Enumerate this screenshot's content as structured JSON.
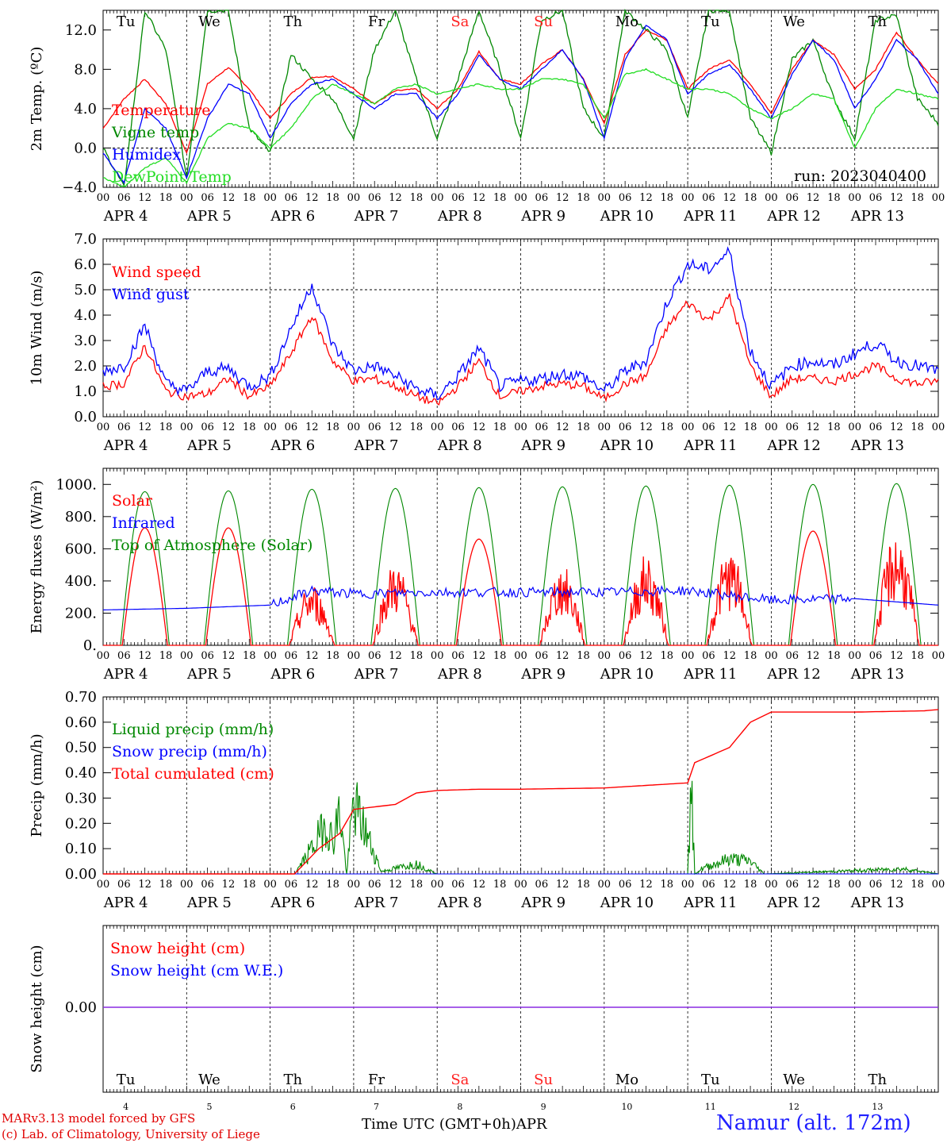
{
  "run_label": "run: 2023040400",
  "station": "Namur (alt. 172m)",
  "credit_line1": "MARv3.13 model forced by GFS",
  "credit_line2": "(c) Lab. of Climatology, University of Liege",
  "xlabel": "Time UTC (GMT+0h)",
  "month": "APR",
  "hour_ticks": [
    "00",
    "06",
    "12",
    "18"
  ],
  "dates": [
    "APR 4",
    "APR 5",
    "APR 6",
    "APR 7",
    "APR 8",
    "APR 9",
    "APR 10",
    "APR 11",
    "APR 12",
    "APR 13"
  ],
  "day_numbers": [
    "4",
    "5",
    "6",
    "7",
    "8",
    "9",
    "10",
    "11",
    "12",
    "13"
  ],
  "weekdays": [
    "Tu",
    "We",
    "Th",
    "Fr",
    "Sa",
    "Su",
    "Mo",
    "Tu",
    "We",
    "Th"
  ],
  "weekend_color": "#ff2020",
  "colors": {
    "red": "#ff0000",
    "green": "#008800",
    "blue": "#0000ff",
    "lightgreen": "#22dd22",
    "purple": "#8a2be2"
  },
  "chart_data": [
    {
      "type": "line",
      "ylabel": "2m Temp. (ºC)",
      "ylim": [
        -4,
        14
      ],
      "yticks": [
        "−4.0",
        "0.0",
        "4.0",
        "8.0",
        "12.0"
      ],
      "grid": true,
      "legend_position": "left",
      "x_unit": "hours since APR 4 00 UTC",
      "series": [
        {
          "name": "Temperature",
          "color": "#ff0000",
          "x": [
            0,
            6,
            12,
            18,
            24,
            30,
            36,
            42,
            48,
            54,
            60,
            66,
            72,
            78,
            84,
            90,
            96,
            102,
            108,
            114,
            120,
            126,
            132,
            138,
            144,
            150,
            156,
            162,
            168,
            174,
            180,
            186,
            192,
            198,
            204,
            210,
            216,
            222,
            228,
            234,
            240
          ],
          "values": [
            2.0,
            5.0,
            7.0,
            4.5,
            -0.5,
            6.5,
            8.2,
            6.0,
            3.0,
            5.5,
            7.2,
            7.3,
            6.0,
            4.5,
            5.8,
            6.0,
            4.0,
            6.0,
            9.8,
            7.0,
            6.5,
            8.5,
            10.0,
            7.0,
            2.5,
            9.5,
            12.0,
            11.0,
            6.0,
            8.0,
            9.0,
            6.5,
            3.5,
            8.0,
            11.0,
            9.5,
            6.0,
            8.0,
            11.8,
            9.0,
            6.5
          ]
        },
        {
          "name": "Vigne temp",
          "color": "#008800",
          "x": [
            0,
            6,
            12,
            18,
            24,
            30,
            36,
            42,
            48,
            54,
            60,
            66,
            72,
            78,
            84,
            90,
            96,
            102,
            108,
            114,
            120,
            126,
            132,
            138,
            144,
            150,
            156,
            162,
            168,
            174,
            180,
            186,
            192,
            198,
            204,
            210,
            216,
            222,
            228,
            234,
            240
          ],
          "values": [
            0.0,
            -4.0,
            14.0,
            10.0,
            -3.0,
            14.0,
            14.0,
            2.0,
            -0.5,
            9.5,
            7.0,
            5.0,
            1.0,
            10.0,
            14.0,
            7.0,
            1.0,
            7.0,
            14.0,
            8.0,
            1.0,
            13.0,
            14.0,
            4.0,
            1.0,
            14.0,
            12.0,
            10.0,
            3.0,
            14.0,
            14.0,
            3.0,
            -0.5,
            9.0,
            11.0,
            5.0,
            1.0,
            13.0,
            13.5,
            5.0,
            2.5
          ]
        },
        {
          "name": "Humidex",
          "color": "#0000ff",
          "x": [
            0,
            6,
            12,
            18,
            24,
            30,
            36,
            42,
            48,
            54,
            60,
            66,
            72,
            78,
            84,
            90,
            96,
            102,
            108,
            114,
            120,
            126,
            132,
            138,
            144,
            150,
            156,
            162,
            168,
            174,
            180,
            186,
            192,
            198,
            204,
            210,
            216,
            222,
            228,
            234,
            240
          ],
          "values": [
            -0.5,
            -3.5,
            4.0,
            2.0,
            -3.0,
            3.0,
            6.5,
            5.5,
            1.0,
            4.5,
            6.5,
            7.0,
            5.5,
            4.0,
            5.5,
            5.5,
            3.0,
            5.5,
            9.5,
            7.0,
            6.0,
            8.0,
            10.0,
            7.0,
            1.0,
            9.0,
            12.5,
            11.0,
            5.5,
            7.5,
            8.5,
            6.0,
            3.0,
            7.5,
            11.0,
            9.0,
            4.0,
            7.0,
            11.0,
            9.0,
            5.5
          ]
        },
        {
          "name": "DewPoint Temp",
          "color": "#22dd22",
          "x": [
            0,
            6,
            12,
            18,
            24,
            30,
            36,
            42,
            48,
            54,
            60,
            66,
            72,
            78,
            84,
            90,
            96,
            102,
            108,
            114,
            120,
            126,
            132,
            138,
            144,
            150,
            156,
            162,
            168,
            174,
            180,
            186,
            192,
            198,
            204,
            210,
            216,
            222,
            228,
            234,
            240
          ],
          "values": [
            -3.0,
            -4.0,
            -2.0,
            -1.0,
            -3.5,
            1.0,
            2.5,
            2.0,
            0.0,
            2.0,
            5.0,
            6.5,
            5.5,
            4.5,
            6.0,
            6.5,
            5.5,
            6.0,
            6.5,
            6.0,
            6.0,
            7.0,
            7.0,
            6.5,
            3.0,
            7.5,
            8.0,
            7.0,
            6.0,
            6.0,
            5.5,
            4.0,
            3.0,
            4.0,
            5.5,
            5.0,
            0.0,
            4.0,
            6.0,
            5.5,
            5.0
          ]
        }
      ],
      "hline": 0
    },
    {
      "type": "line",
      "ylabel": "10m Wind (m/s)",
      "ylim": [
        0,
        7
      ],
      "yticks": [
        "0.0",
        "1.0",
        "2.0",
        "3.0",
        "4.0",
        "5.0",
        "6.0",
        "7.0"
      ],
      "hline": 5,
      "series": [
        {
          "name": "Wind speed",
          "color": "#ff0000",
          "x": [
            0,
            6,
            12,
            18,
            24,
            30,
            36,
            42,
            48,
            54,
            60,
            66,
            72,
            78,
            84,
            90,
            96,
            102,
            108,
            114,
            120,
            126,
            132,
            138,
            144,
            150,
            156,
            162,
            168,
            174,
            180,
            186,
            192,
            198,
            204,
            210,
            216,
            222,
            228,
            234,
            240
          ],
          "values": [
            1.2,
            1.3,
            2.8,
            1.0,
            0.8,
            0.9,
            1.5,
            0.8,
            1.2,
            2.5,
            4.0,
            2.2,
            1.4,
            1.5,
            1.2,
            0.8,
            0.5,
            1.2,
            2.2,
            0.8,
            1.0,
            1.2,
            1.3,
            1.2,
            0.7,
            1.3,
            1.6,
            3.5,
            4.5,
            3.8,
            4.7,
            2.0,
            0.8,
            1.5,
            1.5,
            1.4,
            1.7,
            2.0,
            1.5,
            1.3,
            1.4
          ]
        },
        {
          "name": "Wind gust",
          "color": "#0000ff",
          "x": [
            0,
            6,
            12,
            18,
            24,
            30,
            36,
            42,
            48,
            54,
            60,
            66,
            72,
            78,
            84,
            90,
            96,
            102,
            108,
            114,
            120,
            126,
            132,
            138,
            144,
            150,
            156,
            162,
            168,
            174,
            180,
            186,
            192,
            198,
            204,
            210,
            216,
            222,
            228,
            234,
            240
          ],
          "values": [
            1.8,
            2.0,
            3.6,
            1.3,
            1.0,
            1.8,
            1.9,
            1.2,
            1.6,
            3.5,
            5.2,
            2.8,
            1.8,
            2.0,
            1.6,
            1.1,
            0.8,
            1.6,
            2.7,
            1.2,
            1.4,
            1.5,
            1.7,
            1.6,
            1.0,
            1.8,
            2.2,
            4.5,
            6.0,
            5.8,
            6.5,
            2.6,
            1.2,
            2.0,
            2.2,
            2.0,
            2.5,
            2.9,
            2.2,
            2.0,
            1.8
          ]
        }
      ]
    },
    {
      "type": "line",
      "ylabel": "Energy fluxes (W/m²)",
      "ylim": [
        0,
        1100
      ],
      "yticks": [
        "0.",
        "200.",
        "400.",
        "600.",
        "800.",
        "1000."
      ],
      "series": [
        {
          "name": "Solar",
          "color": "#ff0000",
          "day_peaks": [
            730,
            730,
            390,
            520,
            660,
            500,
            570,
            600,
            710,
            720
          ]
        },
        {
          "name": "Infrared",
          "color": "#0000ff",
          "x": [
            0,
            24,
            48,
            60,
            72,
            96,
            120,
            144,
            168,
            192,
            216,
            240
          ],
          "values": [
            220,
            230,
            250,
            340,
            320,
            330,
            330,
            330,
            340,
            280,
            290,
            250
          ]
        },
        {
          "name": "Top of Atmosphere (Solar)",
          "color": "#008800",
          "day_peaks": [
            955,
            960,
            970,
            975,
            980,
            985,
            990,
            995,
            1000,
            1005
          ]
        }
      ]
    },
    {
      "type": "line",
      "ylabel": "Precip (mm/h)",
      "ylim": [
        0,
        0.7
      ],
      "yticks": [
        "0.00",
        "0.10",
        "0.20",
        "0.30",
        "0.40",
        "0.50",
        "0.60",
        "0.70"
      ],
      "series": [
        {
          "name": "Liquid precip (mm/h)",
          "color": "#008800",
          "x": [
            0,
            55,
            60,
            62,
            64,
            66,
            68,
            70,
            72,
            80,
            90,
            96,
            166,
            168,
            169,
            170,
            172,
            180,
            186,
            190,
            230,
            240
          ],
          "values": [
            0,
            0,
            0.1,
            0.15,
            0.2,
            0.13,
            0.25,
            0.0,
            0.28,
            0.01,
            0.04,
            0,
            0,
            0.0,
            0.33,
            0.0,
            0.02,
            0.06,
            0.05,
            0,
            0.02,
            0
          ]
        },
        {
          "name": "Snow precip (mm/h)",
          "color": "#0000ff",
          "x": [
            0,
            240
          ],
          "values": [
            0,
            0
          ]
        },
        {
          "name": "Total cumulated (cm)",
          "color": "#ff0000",
          "x": [
            0,
            55,
            62,
            68,
            72,
            84,
            90,
            96,
            108,
            120,
            144,
            168,
            170,
            180,
            186,
            192,
            216,
            236,
            240
          ],
          "values": [
            0,
            0,
            0.1,
            0.16,
            0.255,
            0.275,
            0.32,
            0.33,
            0.335,
            0.335,
            0.34,
            0.36,
            0.44,
            0.5,
            0.6,
            0.64,
            0.64,
            0.645,
            0.65
          ]
        }
      ]
    },
    {
      "type": "line",
      "ylabel": "Snow height (cm)",
      "yticks": [
        "0.00"
      ],
      "series": [
        {
          "name": "Snow height (cm)",
          "color": "#ff0000",
          "x": [
            0,
            240
          ],
          "values": [
            0,
            0
          ]
        },
        {
          "name": "Snow height (cm W.E.)",
          "color": "#0000ff",
          "x": [
            0,
            240
          ],
          "values": [
            0,
            0
          ]
        }
      ]
    }
  ]
}
